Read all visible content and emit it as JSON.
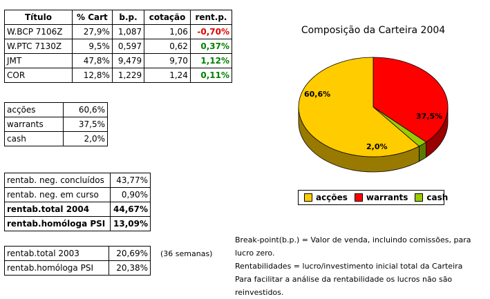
{
  "portfolio": {
    "headers": [
      "Título",
      "% Cart",
      "b.p.",
      "cotação",
      "rent.p."
    ],
    "rows": [
      {
        "titulo": "W.BCP 7106Z",
        "cart": "27,9%",
        "bp": "1,087",
        "cotacao": "1,06",
        "rent": "-0,70%"
      },
      {
        "titulo": "W.PTC 7130Z",
        "cart": "9,5%",
        "bp": "0,597",
        "cotacao": "0,62",
        "rent": "0,37%"
      },
      {
        "titulo": "JMT",
        "cart": "47,8%",
        "bp": "9,479",
        "cotacao": "9,70",
        "rent": "1,12%"
      },
      {
        "titulo": "COR",
        "cart": "12,8%",
        "bp": "1,229",
        "cotacao": "1,24",
        "rent": "0,11%"
      }
    ]
  },
  "allocation": [
    {
      "label": "acções",
      "value": "60,6%"
    },
    {
      "label": "warrants",
      "value": "37,5%"
    },
    {
      "label": "cash",
      "value": "2,0%"
    }
  ],
  "rentab": [
    {
      "label": "rentab. neg. concluídos",
      "value": "43,77%"
    },
    {
      "label": "rentab. neg. em curso",
      "value": "0,90%"
    },
    {
      "label": "rentab.total 2004",
      "value": "44,67%"
    },
    {
      "label": "rentab.homóloga PSI",
      "value": "13,09%"
    }
  ],
  "rentab2": [
    {
      "label": "rentab.total 2003",
      "value": "20,69%"
    },
    {
      "label": "rentab.homóloga PSI",
      "value": "20,38%"
    }
  ],
  "weeks_note": "(36 semanas)",
  "notes": [
    "Break-point(b.p.) = Valor de venda, incluindo comissões, para lucro zero.",
    "Rentabilidades = lucro/investimento inicial total da Carteira",
    "Para facilitar a análise da rentabilidade os lucros não são reinvestidos."
  ],
  "chart_data": {
    "type": "pie",
    "title": "Composição da Carteira 2004",
    "categories": [
      "acções",
      "warrants",
      "cash"
    ],
    "values": [
      60.6,
      37.5,
      2.0
    ],
    "data_labels": [
      "60,6%",
      "37,5%",
      "2,0%"
    ],
    "colors": [
      "#ffcc00",
      "#ff0000",
      "#99cc00"
    ],
    "legend": "bottom"
  }
}
